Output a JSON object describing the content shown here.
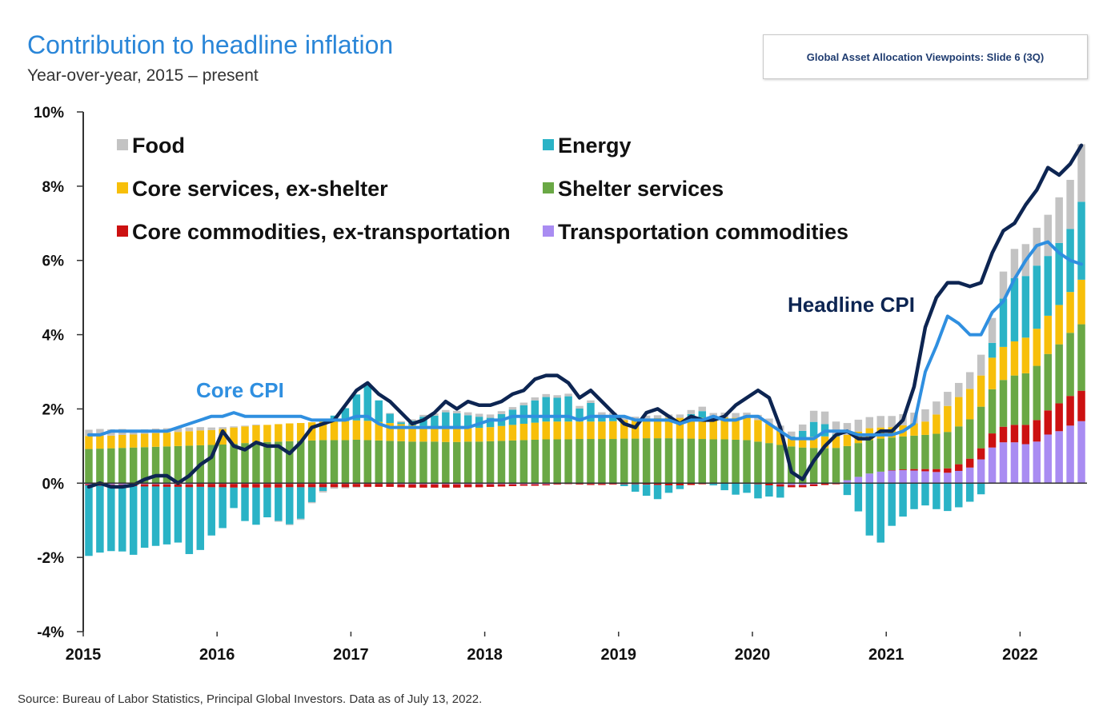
{
  "header": {
    "title": "Contribution to headline inflation",
    "subtitle": "Year-over-year, 2015 – present",
    "slide_tag": "Global Asset Allocation Viewpoints: Slide 6 (3Q)"
  },
  "footer": {
    "source": "Source: Bureau of Labor Statistics, Principal Global Investors. Data as of July 13, 2022."
  },
  "colors": {
    "Food": "#c3c3c3",
    "Energy": "#2ab3c6",
    "Core services, ex-shelter": "#f7bf0a",
    "Shelter services": "#6aa845",
    "Core commodities, ex-transportation": "#cc1111",
    "Transportation commodities": "#a98cf2",
    "Headline CPI": "#0d2552",
    "Core CPI": "#2f8fe0",
    "axis": "#333333"
  },
  "chart_data": {
    "type": "bar",
    "stacked": true,
    "title": "Contribution to headline inflation",
    "subtitle": "Year-over-year, 2015 – present",
    "ylim": [
      -4,
      10
    ],
    "y_ticks": [
      "10%",
      "8%",
      "6%",
      "4%",
      "2%",
      "0%",
      "-2%",
      "-4%"
    ],
    "x_tick_labels": [
      "2015",
      "2016",
      "2017",
      "2018",
      "2019",
      "2020",
      "2021",
      "2022"
    ],
    "x_start": "2015-01",
    "x_end": "2022-06",
    "grid": false,
    "legend": "top-left, two columns",
    "legend_labels": [
      "Food",
      "Energy",
      "Core services, ex-shelter",
      "Shelter services",
      "Core commodities, ex-transportation",
      "Transportation commodities"
    ],
    "annotations": [
      {
        "text": "Core CPI",
        "series": "Core CPI"
      },
      {
        "text": "Headline CPI",
        "series": "Headline CPI"
      }
    ],
    "series": [
      {
        "name": "Food",
        "values": [
          0.17,
          0.18,
          0.17,
          0.16,
          0.13,
          0.12,
          0.12,
          0.12,
          0.11,
          0.1,
          0.09,
          0.07,
          0.05,
          0.03,
          0.02,
          0.02,
          0.0,
          -0.02,
          -0.02,
          -0.03,
          -0.03,
          -0.04,
          -0.04,
          -0.03,
          -0.02,
          -0.01,
          0.0,
          0.02,
          0.03,
          0.04,
          0.05,
          0.06,
          0.06,
          0.07,
          0.08,
          0.08,
          0.09,
          0.08,
          0.07,
          0.07,
          0.08,
          0.08,
          0.07,
          0.07,
          0.07,
          0.07,
          0.07,
          0.08,
          0.08,
          0.07,
          0.08,
          0.08,
          0.09,
          0.09,
          0.11,
          0.12,
          0.13,
          0.13,
          0.13,
          0.14,
          0.14,
          0.14,
          0.14,
          0.13,
          0.17,
          0.3,
          0.34,
          0.35,
          0.32,
          0.32,
          0.3,
          0.31,
          0.3,
          0.3,
          0.29,
          0.33,
          0.35,
          0.38,
          0.38,
          0.45,
          0.56,
          0.67,
          0.73,
          0.79,
          0.86,
          1.02,
          1.11,
          1.23,
          1.32,
          1.55
        ]
      },
      {
        "name": "Energy",
        "values": [
          -1.9,
          -1.8,
          -1.75,
          -1.75,
          -1.85,
          -1.65,
          -1.6,
          -1.55,
          -1.5,
          -1.8,
          -1.7,
          -1.3,
          -1.1,
          -0.55,
          -0.9,
          -1.0,
          -0.8,
          -0.9,
          -1.0,
          -0.85,
          -0.4,
          -0.1,
          0.15,
          0.35,
          0.7,
          0.98,
          0.58,
          0.25,
          0.05,
          0.12,
          0.25,
          0.3,
          0.42,
          0.4,
          0.35,
          0.3,
          0.25,
          0.32,
          0.41,
          0.5,
          0.6,
          0.66,
          0.64,
          0.68,
          0.35,
          0.5,
          0.18,
          0.15,
          -0.05,
          -0.2,
          -0.3,
          -0.38,
          -0.2,
          -0.1,
          0.1,
          0.18,
          -0.04,
          -0.18,
          -0.3,
          -0.24,
          -0.38,
          -0.3,
          -0.3,
          0.05,
          0.2,
          0.4,
          0.33,
          0.05,
          -0.3,
          -0.75,
          -1.4,
          -1.6,
          -1.15,
          -0.9,
          -0.7,
          -0.6,
          -0.7,
          -0.75,
          -0.65,
          -0.5,
          -0.3,
          0.4,
          1.3,
          1.7,
          1.66,
          1.7,
          1.61,
          1.67,
          1.7,
          2.1
        ]
      },
      {
        "name": "Core services, ex-shelter",
        "values": [
          0.35,
          0.35,
          0.34,
          0.35,
          0.35,
          0.36,
          0.37,
          0.37,
          0.38,
          0.39,
          0.4,
          0.4,
          0.42,
          0.44,
          0.45,
          0.46,
          0.46,
          0.47,
          0.48,
          0.48,
          0.49,
          0.5,
          0.51,
          0.51,
          0.52,
          0.52,
          0.5,
          0.48,
          0.46,
          0.44,
          0.42,
          0.4,
          0.38,
          0.37,
          0.36,
          0.37,
          0.38,
          0.4,
          0.42,
          0.44,
          0.46,
          0.48,
          0.48,
          0.48,
          0.47,
          0.47,
          0.47,
          0.48,
          0.5,
          0.52,
          0.53,
          0.54,
          0.55,
          0.56,
          0.56,
          0.57,
          0.58,
          0.59,
          0.59,
          0.6,
          0.58,
          0.52,
          0.38,
          0.22,
          0.25,
          0.3,
          0.32,
          0.31,
          0.3,
          0.31,
          0.32,
          0.3,
          0.28,
          0.3,
          0.33,
          0.36,
          0.52,
          0.7,
          0.79,
          0.82,
          0.84,
          0.85,
          0.89,
          0.92,
          0.96,
          1.0,
          1.03,
          1.06,
          1.1,
          1.2
        ]
      },
      {
        "name": "Shelter services",
        "values": [
          0.92,
          0.93,
          0.94,
          0.95,
          0.96,
          0.97,
          0.98,
          0.99,
          1.0,
          1.01,
          1.02,
          1.03,
          1.04,
          1.06,
          1.08,
          1.1,
          1.11,
          1.12,
          1.13,
          1.14,
          1.15,
          1.16,
          1.16,
          1.16,
          1.17,
          1.16,
          1.15,
          1.14,
          1.13,
          1.12,
          1.12,
          1.12,
          1.11,
          1.11,
          1.12,
          1.12,
          1.13,
          1.14,
          1.15,
          1.16,
          1.17,
          1.18,
          1.18,
          1.18,
          1.19,
          1.19,
          1.19,
          1.19,
          1.2,
          1.2,
          1.21,
          1.21,
          1.21,
          1.2,
          1.2,
          1.19,
          1.18,
          1.17,
          1.16,
          1.15,
          1.12,
          1.08,
          1.03,
          0.99,
          0.96,
          0.95,
          0.94,
          0.93,
          0.92,
          0.91,
          0.9,
          0.89,
          0.88,
          0.89,
          0.9,
          0.92,
          0.95,
          0.98,
          1.02,
          1.06,
          1.12,
          1.19,
          1.26,
          1.33,
          1.39,
          1.46,
          1.52,
          1.59,
          1.7,
          1.79
        ]
      },
      {
        "name": "Core commodities, ex-transportation",
        "values": [
          -0.03,
          -0.04,
          -0.04,
          -0.05,
          -0.05,
          -0.06,
          -0.06,
          -0.07,
          -0.07,
          -0.08,
          -0.08,
          -0.09,
          -0.09,
          -0.1,
          -0.1,
          -0.1,
          -0.1,
          -0.1,
          -0.09,
          -0.09,
          -0.09,
          -0.09,
          -0.09,
          -0.09,
          -0.08,
          -0.08,
          -0.08,
          -0.08,
          -0.08,
          -0.09,
          -0.09,
          -0.09,
          -0.09,
          -0.09,
          -0.08,
          -0.08,
          -0.07,
          -0.06,
          -0.05,
          -0.04,
          -0.04,
          -0.03,
          -0.02,
          -0.01,
          -0.02,
          -0.03,
          -0.03,
          -0.02,
          -0.02,
          -0.02,
          -0.03,
          -0.04,
          -0.05,
          -0.05,
          -0.04,
          -0.03,
          -0.02,
          -0.01,
          -0.01,
          -0.02,
          -0.03,
          -0.05,
          -0.06,
          -0.06,
          -0.06,
          -0.05,
          -0.04,
          -0.03,
          -0.02,
          -0.01,
          -0.01,
          0.0,
          0.01,
          0.02,
          0.04,
          0.06,
          0.08,
          0.12,
          0.18,
          0.24,
          0.3,
          0.38,
          0.42,
          0.47,
          0.52,
          0.58,
          0.65,
          0.75,
          0.8,
          0.82
        ]
      },
      {
        "name": "Transportation commodities",
        "values": [
          -0.03,
          -0.03,
          -0.04,
          -0.04,
          -0.03,
          -0.03,
          -0.03,
          -0.03,
          -0.03,
          -0.03,
          -0.02,
          -0.02,
          -0.02,
          -0.02,
          -0.02,
          -0.02,
          -0.02,
          -0.02,
          -0.02,
          -0.02,
          -0.02,
          -0.02,
          -0.02,
          -0.02,
          -0.02,
          -0.02,
          -0.02,
          -0.02,
          -0.03,
          -0.03,
          -0.03,
          -0.03,
          -0.03,
          -0.03,
          -0.03,
          -0.03,
          -0.03,
          -0.03,
          -0.03,
          -0.03,
          -0.03,
          -0.03,
          -0.02,
          -0.02,
          -0.02,
          -0.02,
          -0.02,
          -0.02,
          -0.01,
          -0.01,
          -0.01,
          -0.01,
          -0.01,
          -0.01,
          -0.01,
          0.0,
          0.0,
          0.01,
          0.01,
          0.01,
          0.0,
          -0.01,
          -0.03,
          -0.05,
          -0.05,
          -0.03,
          -0.01,
          0.02,
          0.08,
          0.17,
          0.26,
          0.31,
          0.34,
          0.35,
          0.34,
          0.32,
          0.3,
          0.28,
          0.33,
          0.42,
          0.64,
          0.96,
          1.1,
          1.1,
          1.05,
          1.12,
          1.31,
          1.4,
          1.55,
          1.67
        ]
      },
      {
        "name": "Headline CPI",
        "type": "line",
        "values": [
          -0.1,
          0.0,
          -0.1,
          -0.1,
          -0.05,
          0.1,
          0.2,
          0.2,
          0.0,
          0.2,
          0.5,
          0.7,
          1.4,
          1.0,
          0.9,
          1.1,
          1.0,
          1.0,
          0.8,
          1.1,
          1.5,
          1.6,
          1.7,
          2.1,
          2.5,
          2.7,
          2.4,
          2.2,
          1.9,
          1.6,
          1.7,
          1.9,
          2.2,
          2.0,
          2.2,
          2.1,
          2.1,
          2.2,
          2.4,
          2.5,
          2.8,
          2.9,
          2.9,
          2.7,
          2.3,
          2.5,
          2.2,
          1.9,
          1.6,
          1.5,
          1.9,
          2.0,
          1.8,
          1.6,
          1.8,
          1.7,
          1.7,
          1.8,
          2.1,
          2.3,
          2.5,
          2.3,
          1.5,
          0.3,
          0.1,
          0.6,
          1.0,
          1.3,
          1.4,
          1.2,
          1.2,
          1.4,
          1.4,
          1.7,
          2.6,
          4.2,
          5.0,
          5.4,
          5.4,
          5.3,
          5.4,
          6.2,
          6.8,
          7.0,
          7.5,
          7.9,
          8.5,
          8.3,
          8.6,
          9.1
        ]
      },
      {
        "name": "Core CPI",
        "type": "line",
        "values": [
          1.3,
          1.3,
          1.4,
          1.4,
          1.4,
          1.4,
          1.4,
          1.4,
          1.5,
          1.6,
          1.7,
          1.8,
          1.8,
          1.9,
          1.8,
          1.8,
          1.8,
          1.8,
          1.8,
          1.8,
          1.7,
          1.7,
          1.7,
          1.7,
          1.8,
          1.8,
          1.6,
          1.5,
          1.5,
          1.5,
          1.5,
          1.5,
          1.5,
          1.5,
          1.5,
          1.6,
          1.7,
          1.7,
          1.8,
          1.8,
          1.8,
          1.8,
          1.8,
          1.8,
          1.7,
          1.8,
          1.8,
          1.8,
          1.8,
          1.7,
          1.7,
          1.7,
          1.7,
          1.6,
          1.7,
          1.7,
          1.8,
          1.7,
          1.7,
          1.8,
          1.8,
          1.6,
          1.4,
          1.2,
          1.2,
          1.2,
          1.4,
          1.4,
          1.4,
          1.3,
          1.3,
          1.3,
          1.3,
          1.4,
          1.6,
          3.0,
          3.7,
          4.5,
          4.3,
          4.0,
          4.0,
          4.6,
          4.9,
          5.5,
          6.0,
          6.4,
          6.5,
          6.2,
          6.0,
          5.9
        ]
      }
    ]
  }
}
